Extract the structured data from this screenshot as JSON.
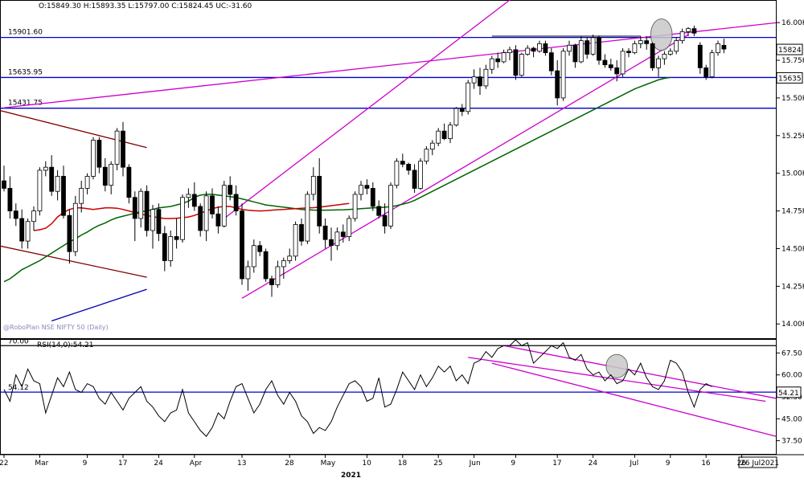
{
  "chart_data": [
    {
      "type": "candlestick",
      "info_text": "O:15849.30  H:15893.35  L:15797.00  C:15824.45  UC:-31.60",
      "watermark": "@RoboPlan NSE NIFTY 50 (Daily)",
      "colors": {
        "up": "#ffffff",
        "down": "#000000",
        "ma_short": "#cc0000",
        "ma_long": "#006400",
        "trend": "#cc00cc",
        "level": "#0000cc",
        "channel": "#800000",
        "support": "#0000aa",
        "highlight": "#c8c8c8"
      },
      "ylim": [
        13900,
        16150
      ],
      "y_ticks": [
        {
          "value": 16000,
          "label": "16.00K"
        },
        {
          "value": 15750,
          "label": "15.75K"
        },
        {
          "value": 15500,
          "label": "15.50K"
        },
        {
          "value": 15250,
          "label": "15.25K"
        },
        {
          "value": 15000,
          "label": "15.00K"
        },
        {
          "value": 14750,
          "label": "14.75K"
        },
        {
          "value": 14500,
          "label": "14.50K"
        },
        {
          "value": 14250,
          "label": "14.25K"
        },
        {
          "value": 14000,
          "label": "14.00K"
        }
      ],
      "levels": [
        {
          "value": 15901.6,
          "label": "15901.60"
        },
        {
          "value": 15635.95,
          "label": "15635.95"
        },
        {
          "value": 15431.75,
          "label": "15431.75"
        }
      ],
      "right_tags": [
        {
          "value": 15824.4,
          "label": "15824.4"
        },
        {
          "value": 15635.9,
          "label": "15635.9"
        }
      ],
      "candles": [
        [
          14950,
          15050,
          14880,
          14900
        ],
        [
          14900,
          14980,
          14700,
          14750
        ],
        [
          14750,
          14800,
          14650,
          14700
        ],
        [
          14700,
          14760,
          14500,
          14550
        ],
        [
          14550,
          14700,
          14500,
          14680
        ],
        [
          14680,
          14780,
          14620,
          14750
        ],
        [
          14750,
          15040,
          14720,
          15020
        ],
        [
          15020,
          15080,
          14980,
          15040
        ],
        [
          15040,
          15120,
          14850,
          14880
        ],
        [
          14880,
          15020,
          14820,
          14980
        ],
        [
          14980,
          15050,
          14700,
          14720
        ],
        [
          14720,
          14760,
          14400,
          14480
        ],
        [
          14480,
          14850,
          14450,
          14800
        ],
        [
          14800,
          14950,
          14740,
          14900
        ],
        [
          14900,
          15000,
          14860,
          14980
        ],
        [
          14980,
          15240,
          14960,
          15220
        ],
        [
          15220,
          15240,
          15000,
          15040
        ],
        [
          15040,
          15100,
          14880,
          14920
        ],
        [
          14920,
          15080,
          14860,
          15060
        ],
        [
          15060,
          15300,
          15020,
          15280
        ],
        [
          15280,
          15340,
          14980,
          15040
        ],
        [
          15040,
          15060,
          14800,
          14840
        ],
        [
          14840,
          14880,
          14550,
          14700
        ],
        [
          14700,
          14900,
          14640,
          14880
        ],
        [
          14880,
          14920,
          14580,
          14620
        ],
        [
          14620,
          14790,
          14500,
          14760
        ],
        [
          14760,
          14800,
          14550,
          14600
        ],
        [
          14600,
          14650,
          14350,
          14420
        ],
        [
          14420,
          14620,
          14380,
          14580
        ],
        [
          14580,
          14700,
          14500,
          14560
        ],
        [
          14560,
          14860,
          14540,
          14840
        ],
        [
          14840,
          14900,
          14770,
          14860
        ],
        [
          14860,
          14940,
          14750,
          14780
        ],
        [
          14780,
          14800,
          14580,
          14620
        ],
        [
          14620,
          14880,
          14550,
          14850
        ],
        [
          14850,
          14900,
          14700,
          14730
        ],
        [
          14730,
          14780,
          14600,
          14650
        ],
        [
          14650,
          14950,
          14640,
          14920
        ],
        [
          14920,
          14980,
          14820,
          14860
        ],
        [
          14860,
          14920,
          14720,
          14750
        ],
        [
          14750,
          14800,
          14260,
          14300
        ],
        [
          14300,
          14420,
          14220,
          14380
        ],
        [
          14380,
          14560,
          14340,
          14520
        ],
        [
          14520,
          14550,
          14450,
          14480
        ],
        [
          14480,
          14500,
          14280,
          14300
        ],
        [
          14300,
          14320,
          14180,
          14260
        ],
        [
          14260,
          14420,
          14240,
          14380
        ],
        [
          14380,
          14440,
          14300,
          14420
        ],
        [
          14420,
          14500,
          14400,
          14450
        ],
        [
          14450,
          14680,
          14420,
          14660
        ],
        [
          14660,
          14700,
          14520,
          14550
        ],
        [
          14550,
          14880,
          14530,
          14860
        ],
        [
          14860,
          15040,
          14820,
          14980
        ],
        [
          14980,
          15100,
          14600,
          14650
        ],
        [
          14650,
          14700,
          14500,
          14560
        ],
        [
          14560,
          14640,
          14420,
          14520
        ],
        [
          14520,
          14640,
          14490,
          14610
        ],
        [
          14610,
          14660,
          14540,
          14580
        ],
        [
          14580,
          14720,
          14550,
          14700
        ],
        [
          14700,
          14880,
          14680,
          14860
        ],
        [
          14860,
          14950,
          14820,
          14920
        ],
        [
          14920,
          14960,
          14860,
          14900
        ],
        [
          14900,
          14940,
          14750,
          14780
        ],
        [
          14780,
          14820,
          14700,
          14720
        ],
        [
          14720,
          14800,
          14600,
          14650
        ],
        [
          14650,
          14940,
          14630,
          14920
        ],
        [
          14920,
          15100,
          14900,
          15080
        ],
        [
          15080,
          15130,
          15040,
          15060
        ],
        [
          15060,
          15070,
          14990,
          15020
        ],
        [
          15020,
          15060,
          14870,
          14900
        ],
        [
          14900,
          15100,
          14890,
          15080
        ],
        [
          15080,
          15180,
          15060,
          15160
        ],
        [
          15160,
          15220,
          15120,
          15200
        ],
        [
          15200,
          15300,
          15180,
          15280
        ],
        [
          15280,
          15330,
          15220,
          15230
        ],
        [
          15230,
          15340,
          15200,
          15320
        ],
        [
          15320,
          15440,
          15310,
          15430
        ],
        [
          15430,
          15460,
          15380,
          15410
        ],
        [
          15410,
          15620,
          15390,
          15600
        ],
        [
          15600,
          15690,
          15560,
          15640
        ],
        [
          15640,
          15700,
          15520,
          15580
        ],
        [
          15580,
          15720,
          15560,
          15690
        ],
        [
          15690,
          15780,
          15660,
          15760
        ],
        [
          15760,
          15800,
          15700,
          15740
        ],
        [
          15740,
          15820,
          15730,
          15800
        ],
        [
          15800,
          15840,
          15750,
          15820
        ],
        [
          15820,
          15850,
          15620,
          15650
        ],
        [
          15650,
          15800,
          15640,
          15790
        ],
        [
          15790,
          15850,
          15780,
          15830
        ],
        [
          15830,
          15840,
          15770,
          15810
        ],
        [
          15810,
          15880,
          15800,
          15860
        ],
        [
          15860,
          15880,
          15780,
          15800
        ],
        [
          15800,
          15830,
          15650,
          15680
        ],
        [
          15680,
          15750,
          15450,
          15500
        ],
        [
          15500,
          15830,
          15480,
          15810
        ],
        [
          15810,
          15880,
          15780,
          15850
        ],
        [
          15850,
          15860,
          15700,
          15740
        ],
        [
          15740,
          15910,
          15730,
          15880
        ],
        [
          15880,
          15900,
          15760,
          15790
        ],
        [
          15790,
          15920,
          15780,
          15900
        ],
        [
          15900,
          15915,
          15720,
          15750
        ],
        [
          15750,
          15790,
          15700,
          15720
        ],
        [
          15720,
          15760,
          15680,
          15700
        ],
        [
          15700,
          15750,
          15610,
          15660
        ],
        [
          15660,
          15830,
          15640,
          15810
        ],
        [
          15810,
          15830,
          15770,
          15800
        ],
        [
          15800,
          15880,
          15790,
          15860
        ],
        [
          15860,
          15910,
          15830,
          15880
        ],
        [
          15880,
          15910,
          15820,
          15860
        ],
        [
          15860,
          15870,
          15680,
          15700
        ],
        [
          15700,
          15780,
          15640,
          15760
        ],
        [
          15760,
          15810,
          15720,
          15790
        ],
        [
          15790,
          15830,
          15780,
          15810
        ],
        [
          15810,
          15900,
          15790,
          15880
        ],
        [
          15880,
          15960,
          15860,
          15940
        ],
        [
          15940,
          15970,
          15910,
          15960
        ],
        [
          15960,
          15980,
          15910,
          15930
        ],
        [
          15850,
          15870,
          15660,
          15700
        ],
        [
          15700,
          15720,
          15620,
          15640
        ],
        [
          15640,
          15820,
          15630,
          15800
        ],
        [
          15800,
          15880,
          15780,
          15860
        ],
        [
          15849.3,
          15893.35,
          15797,
          15824.45
        ]
      ],
      "ma_long": [
        14280,
        14300,
        14330,
        14360,
        14380,
        14400,
        14420,
        14445,
        14470,
        14495,
        14520,
        14545,
        14565,
        14590,
        14610,
        14635,
        14655,
        14670,
        14690,
        14705,
        14715,
        14725,
        14735,
        14745,
        14750,
        14760,
        14770,
        14775,
        14780,
        14790,
        14800,
        14815,
        14840,
        14855,
        14860,
        14860,
        14855,
        14850,
        14845,
        14840,
        14830,
        14820,
        14810,
        14800,
        14790,
        14785,
        14780,
        14775,
        14770,
        14765,
        14760,
        14758,
        14756,
        14755,
        14755,
        14756,
        14757,
        14758,
        14760,
        14762,
        14765,
        14768,
        14770,
        14772,
        14775,
        14778,
        14785,
        14795,
        14805,
        14820,
        14840,
        14860,
        14880,
        14900,
        14920,
        14940,
        14960,
        14980,
        15000,
        15020,
        15040,
        15060,
        15080,
        15100,
        15120,
        15140,
        15160,
        15180,
        15200,
        15220,
        15240,
        15260,
        15280,
        15300,
        15320,
        15340,
        15360,
        15380,
        15400,
        15420,
        15440,
        15460,
        15480,
        15500,
        15520,
        15540,
        15560,
        15575,
        15590,
        15605,
        15620,
        15630,
        15636
      ],
      "ma_long_start": 0,
      "ma_short": [
        14620,
        14625,
        14635,
        14665,
        14710,
        14740,
        14760,
        14770,
        14770,
        14765,
        14760,
        14765,
        14770,
        14770,
        14768,
        14760,
        14750,
        14740,
        14730,
        14720,
        14712,
        14705,
        14700,
        14700,
        14702,
        14705,
        14710,
        14720,
        14735,
        14750,
        14765,
        14775,
        14780,
        14780,
        14770,
        14760,
        14755,
        14752,
        14750,
        14752,
        14755,
        14758,
        14760,
        14763,
        14765,
        14768,
        14770,
        14772,
        14775,
        14780,
        14785,
        14790,
        14795,
        14800
      ],
      "ma_short_start": 5,
      "trend_lines": [
        {
          "x1": 0,
          "y1": 15435,
          "x2": 160,
          "y2": 16130
        },
        {
          "x1": 37,
          "y1": 14700,
          "x2": 85,
          "y2": 16150
        },
        {
          "x1": 40,
          "y1": 14170,
          "x2": 115,
          "y2": 15920
        }
      ],
      "channel_lines": [
        {
          "x1": -1,
          "y1": 15420,
          "x2": 24,
          "y2": 15170
        },
        {
          "x1": -1,
          "y1": 14520,
          "x2": 24,
          "y2": 14310
        }
      ],
      "support_line": {
        "x1": 8,
        "y1": 14020,
        "x2": 24,
        "y2": 14230
      },
      "resistance_short": {
        "x1": 82,
        "y1": 15910,
        "x2": 107,
        "y2": 15910
      },
      "highlight": {
        "x": 110.5,
        "y": 15920,
        "rx": 1.8,
        "ry": 105
      }
    },
    {
      "type": "line",
      "label": "RSI(14,0):54.21",
      "ylim": [
        33,
        72
      ],
      "y_ticks": [
        {
          "value": 67.5,
          "label": "67.50"
        },
        {
          "value": 60,
          "label": "60.00"
        },
        {
          "value": 52.5,
          "label": "52.50"
        },
        {
          "value": 45,
          "label": "45.00"
        },
        {
          "value": 37.5,
          "label": "37.50"
        }
      ],
      "levels": [
        {
          "value": 70,
          "label": "70.00"
        },
        {
          "value": 54.12,
          "label": "54.12"
        }
      ],
      "value_tag": {
        "value": 54.21,
        "label": "54.21"
      },
      "values": [
        55,
        51,
        60,
        56,
        62,
        58,
        57,
        47,
        53,
        59,
        56,
        61,
        55,
        54,
        57,
        56,
        52,
        50,
        54,
        51,
        48,
        52,
        54,
        56,
        51,
        49,
        46,
        44,
        47,
        48,
        55,
        47,
        44,
        41,
        39,
        42,
        47,
        45,
        51,
        56,
        57,
        52,
        47,
        50,
        55,
        58,
        53,
        50,
        54,
        51,
        46,
        44,
        40,
        42,
        41,
        44,
        49,
        53,
        57,
        58,
        56,
        51,
        52,
        59,
        49,
        50,
        55,
        61,
        58,
        55,
        60,
        56,
        59,
        63,
        61,
        63,
        58,
        60,
        57,
        64,
        65,
        68,
        66,
        69,
        70,
        70,
        72,
        70,
        71,
        64,
        66,
        68,
        70,
        69,
        71,
        66,
        65,
        67,
        62,
        60,
        61,
        58,
        60,
        57,
        58,
        62,
        60,
        64,
        59,
        56,
        55,
        58,
        65,
        64,
        61,
        54,
        49,
        55,
        57,
        56
      ],
      "values_start": 0,
      "channel": [
        {
          "x1": 78,
          "y1": 66,
          "x2": 128,
          "y2": 51
        },
        {
          "x1": 82,
          "y1": 64,
          "x2": 142,
          "y2": 39
        },
        {
          "x1": 84,
          "y1": 70,
          "x2": 143,
          "y2": 52
        }
      ],
      "highlight": {
        "x": 103,
        "y": 63,
        "rx": 1.8,
        "ry": 4
      }
    }
  ],
  "x_axis": {
    "ticks": [
      {
        "index": 0,
        "label": "22"
      },
      {
        "index": 6,
        "label": "Mar"
      },
      {
        "index": 14,
        "label": "9"
      },
      {
        "index": 20,
        "label": "17"
      },
      {
        "index": 26,
        "label": "24"
      },
      {
        "index": 32,
        "label": "Apr"
      },
      {
        "index": 40,
        "label": "13"
      },
      {
        "index": 48,
        "label": "28"
      },
      {
        "index": 54,
        "label": "May"
      },
      {
        "index": 61,
        "label": "10"
      },
      {
        "index": 67,
        "label": "18"
      },
      {
        "index": 73,
        "label": "25"
      },
      {
        "index": 79,
        "label": "Jun"
      },
      {
        "index": 86,
        "label": "9"
      },
      {
        "index": 93,
        "label": "17"
      },
      {
        "index": 99,
        "label": "24"
      },
      {
        "index": 106,
        "label": "Jul"
      },
      {
        "index": 112,
        "label": "9"
      },
      {
        "index": 118,
        "label": "16"
      },
      {
        "index": 124,
        "label": "26"
      }
    ],
    "year_label": "2021",
    "date_tag": "26 Jul2021"
  }
}
